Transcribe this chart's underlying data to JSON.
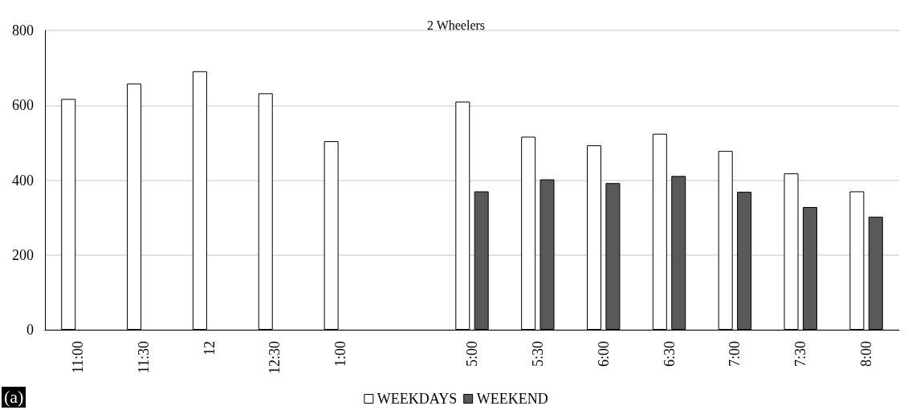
{
  "chart_data": {
    "type": "bar",
    "title": "2 Wheelers",
    "categories": [
      "11:00",
      "11:30",
      "12",
      "12:30",
      "1:00",
      null,
      "5:00",
      "5:30",
      "6:00",
      "6:30",
      "7:00",
      "7:30",
      "8:00"
    ],
    "series": [
      {
        "name": "WEEKDAYS",
        "color": "#ffffff",
        "values": [
          617,
          658,
          691,
          632,
          504,
          null,
          610,
          516,
          493,
          524,
          478,
          418,
          370
        ]
      },
      {
        "name": "WEEKEND",
        "color": "#595959",
        "values": [
          null,
          null,
          null,
          null,
          null,
          null,
          370,
          402,
          392,
          411,
          369,
          328,
          302
        ]
      }
    ],
    "ylim": [
      0,
      800
    ],
    "yticks": [
      0,
      200,
      400,
      600,
      800
    ],
    "grid": "y",
    "legend": "bottom",
    "annotations": [
      "(a)"
    ]
  }
}
